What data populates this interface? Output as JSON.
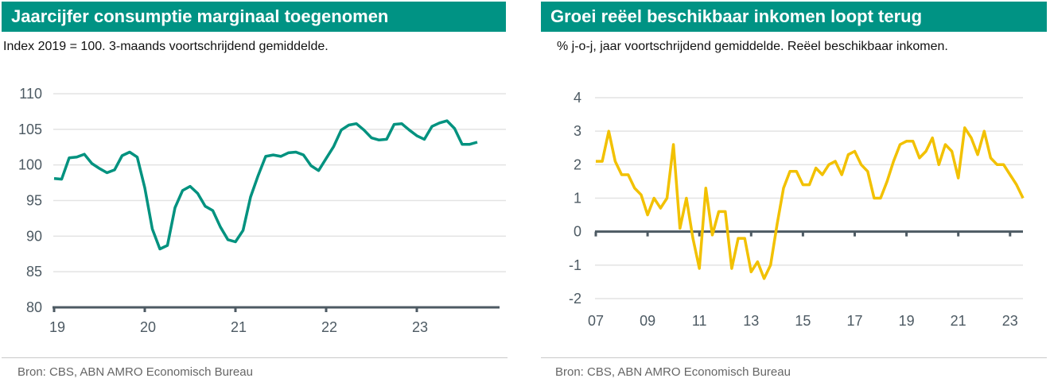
{
  "colors": {
    "header": "#009384",
    "left_line": "#00927f",
    "right_line": "#f2c100",
    "axis": "#4d5a63",
    "grid": "#e3e3e3"
  },
  "chart_data": [
    {
      "type": "line",
      "title": "Jaarcijfer consumptie marginaal toegenomen",
      "subtitle": "Index 2019 = 100. 3-maands voortschrijdend gemiddelde.",
      "source": "Bron: CBS, ABN AMRO Economisch Bureau",
      "frequency": "monthly",
      "start": "2019-01",
      "xticks": [
        "19",
        "20",
        "21",
        "22",
        "23"
      ],
      "yticks": [
        "80",
        "85",
        "90",
        "95",
        "100",
        "105",
        "110"
      ],
      "ylim": [
        80,
        110
      ],
      "grid": true,
      "values": [
        98.1,
        98.0,
        101.0,
        101.1,
        101.5,
        100.2,
        99.5,
        98.9,
        99.3,
        101.3,
        101.8,
        101.1,
        96.8,
        91.0,
        88.2,
        88.7,
        94.0,
        96.4,
        97.0,
        96.0,
        94.2,
        93.6,
        91.3,
        89.5,
        89.2,
        90.8,
        95.5,
        98.5,
        101.2,
        101.4,
        101.2,
        101.7,
        101.8,
        101.4,
        99.9,
        99.2,
        100.9,
        102.6,
        104.9,
        105.6,
        105.8,
        104.9,
        103.8,
        103.5,
        103.6,
        105.7,
        105.8,
        104.9,
        104.1,
        103.6,
        105.4,
        105.9,
        106.2,
        105.1,
        102.9,
        102.9,
        103.2
      ]
    },
    {
      "type": "line",
      "title": "Groei reëel beschikbaar inkomen loopt terug",
      "subtitle": "% j-o-j, jaar voortschrijdend gemiddelde. Reëel beschikbaar inkomen.",
      "source": "Bron: CBS, ABN AMRO Economisch Bureau",
      "frequency": "quarterly",
      "start": "2007-Q1",
      "xticks": [
        "07",
        "09",
        "11",
        "13",
        "15",
        "17",
        "19",
        "21",
        "23"
      ],
      "yticks": [
        "-2",
        "-1",
        "0",
        "1",
        "2",
        "3",
        "4"
      ],
      "ylim": [
        -2,
        4
      ],
      "grid": true,
      "values": [
        2.1,
        2.1,
        3.0,
        2.1,
        1.7,
        1.7,
        1.3,
        1.1,
        0.5,
        1.0,
        0.7,
        1.0,
        2.6,
        0.1,
        1.0,
        -0.2,
        -1.1,
        1.3,
        -0.1,
        0.6,
        0.6,
        -1.1,
        -0.2,
        -0.2,
        -1.2,
        -0.9,
        -1.4,
        -1.0,
        0.2,
        1.3,
        1.8,
        1.8,
        1.4,
        1.4,
        1.9,
        1.7,
        2.0,
        2.1,
        1.7,
        2.3,
        2.4,
        2.0,
        1.8,
        1.0,
        1.0,
        1.5,
        2.1,
        2.6,
        2.7,
        2.7,
        2.2,
        2.4,
        2.8,
        2.0,
        2.6,
        2.4,
        1.6,
        3.1,
        2.8,
        2.3,
        3.0,
        2.2,
        2.0,
        2.0,
        1.7,
        1.4,
        1.0
      ]
    }
  ]
}
